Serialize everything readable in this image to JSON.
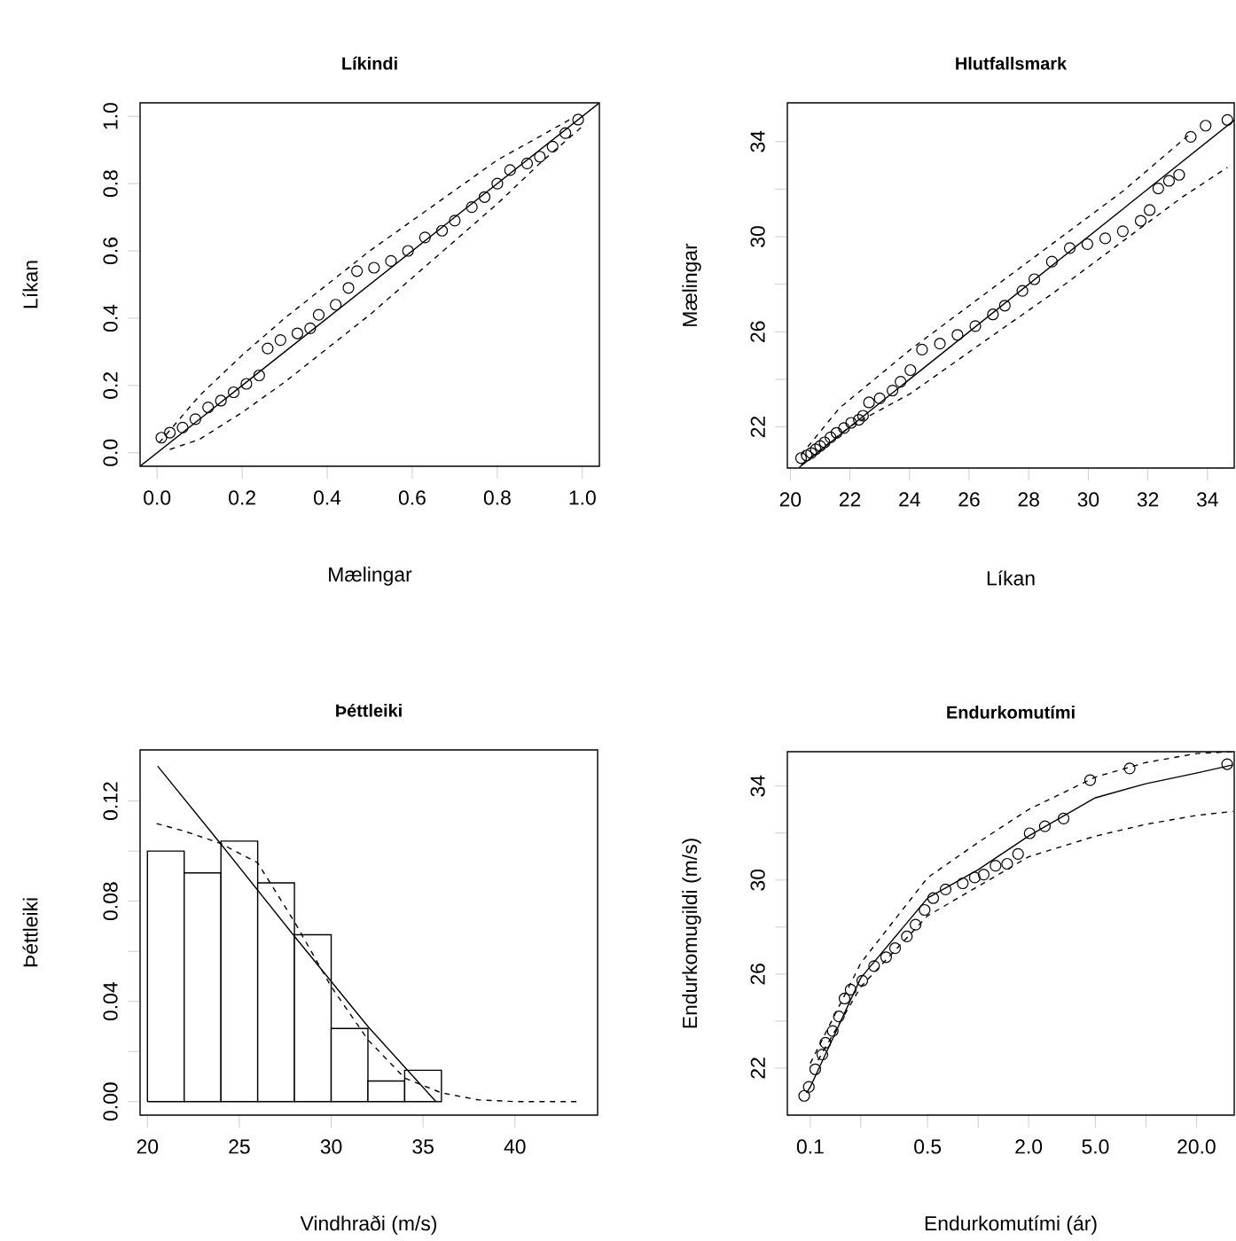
{
  "chart_data": [
    {
      "type": "scatter",
      "title": "Líkindi",
      "xlabel": "Mælingar",
      "ylabel": "Líkan",
      "xlim": [
        -0.04,
        1.04
      ],
      "ylim": [
        -0.04,
        1.04
      ],
      "xticks": [
        {
          "value": 0,
          "label": "0.0"
        },
        {
          "value": 0.2,
          "label": "0.2"
        },
        {
          "value": 0.4,
          "label": "0.4"
        },
        {
          "value": 0.6,
          "label": "0.6"
        },
        {
          "value": 0.8,
          "label": "0.8"
        },
        {
          "value": 1,
          "label": "1.0"
        }
      ],
      "yticks": [
        {
          "value": 0,
          "label": "0.0"
        },
        {
          "value": 0.2,
          "label": "0.2"
        },
        {
          "value": 0.4,
          "label": "0.4"
        },
        {
          "value": 0.6,
          "label": "0.6"
        },
        {
          "value": 0.8,
          "label": "0.8"
        },
        {
          "value": 1,
          "label": "1.0"
        }
      ],
      "series": [
        {
          "type": "scatter",
          "marker": "circle",
          "color": "#000000",
          "x": [
            0.01,
            0.03,
            0.06,
            0.09,
            0.12,
            0.15,
            0.18,
            0.21,
            0.24,
            0.26,
            0.29,
            0.33,
            0.36,
            0.38,
            0.42,
            0.45,
            0.47,
            0.51,
            0.55,
            0.59,
            0.63,
            0.67,
            0.7,
            0.74,
            0.77,
            0.8,
            0.83,
            0.87,
            0.9,
            0.93,
            0.96,
            0.99
          ],
          "values": [
            0.045,
            0.06,
            0.075,
            0.1,
            0.135,
            0.155,
            0.18,
            0.205,
            0.23,
            0.31,
            0.335,
            0.355,
            0.37,
            0.41,
            0.44,
            0.49,
            0.54,
            0.55,
            0.57,
            0.6,
            0.64,
            0.66,
            0.69,
            0.73,
            0.76,
            0.8,
            0.84,
            0.86,
            0.88,
            0.91,
            0.95,
            0.99
          ]
        },
        {
          "type": "line",
          "line_style": "solid",
          "color": "#000000",
          "x": [
            -0.04,
            1.04
          ],
          "values": [
            -0.04,
            1.04
          ]
        },
        {
          "type": "line",
          "line_style": "dashed",
          "color": "#000000",
          "x": [
            0.005,
            0.1,
            0.2,
            0.3,
            0.4,
            0.5,
            0.6,
            0.7,
            0.8,
            0.9,
            0.97
          ],
          "values": [
            0.03,
            0.17,
            0.29,
            0.4,
            0.5,
            0.6,
            0.69,
            0.78,
            0.87,
            0.94,
            0.99
          ]
        },
        {
          "type": "line",
          "line_style": "dashed",
          "color": "#000000",
          "x": [
            0.03,
            0.1,
            0.2,
            0.3,
            0.4,
            0.5,
            0.6,
            0.7,
            0.8,
            0.9,
            1
          ],
          "values": [
            0.01,
            0.04,
            0.12,
            0.21,
            0.31,
            0.41,
            0.52,
            0.63,
            0.74,
            0.86,
            0.97
          ]
        }
      ]
    },
    {
      "type": "scatter",
      "title": "Hlutfallsmark",
      "xlabel": "Líkan",
      "ylabel": "Mælingar",
      "xlim": [
        19.9,
        34.9
      ],
      "ylim": [
        20.27,
        35.63
      ],
      "xticks": [
        20,
        22,
        24,
        26,
        28,
        30,
        32,
        34
      ],
      "yticks": [
        22,
        {
          "value": 24,
          "label": null
        },
        26,
        {
          "value": 28,
          "label": null
        },
        30,
        {
          "value": 32,
          "label": null
        },
        34
      ],
      "series": [
        {
          "type": "scatter",
          "marker": "circle",
          "color": "#000000",
          "x": [
            20.36,
            20.55,
            20.7,
            20.85,
            21.0,
            21.15,
            21.35,
            21.55,
            21.8,
            22.04,
            22.3,
            22.44,
            22.64,
            23.0,
            23.43,
            23.7,
            24.03,
            24.42,
            25.02,
            25.61,
            26.21,
            26.8,
            27.2,
            27.79,
            28.19,
            28.78,
            29.38,
            29.97,
            30.57,
            31.16,
            31.76,
            32.06,
            32.35,
            32.71,
            33.05,
            33.44,
            33.94,
            34.67
          ],
          "values": [
            20.69,
            20.8,
            20.9,
            21.06,
            21.2,
            21.35,
            21.56,
            21.75,
            21.95,
            22.17,
            22.3,
            22.47,
            23.03,
            23.2,
            23.53,
            23.9,
            24.39,
            25.25,
            25.5,
            25.87,
            26.24,
            26.73,
            27.1,
            27.72,
            28.21,
            28.95,
            29.52,
            29.69,
            29.93,
            30.23,
            30.67,
            31.12,
            32.03,
            32.35,
            32.6,
            34.2,
            34.67,
            34.91
          ]
        },
        {
          "type": "line",
          "line_style": "solid",
          "color": "#000000",
          "x": [
            20.3,
            34.9
          ],
          "values": [
            20.3,
            34.9
          ]
        },
        {
          "type": "line",
          "line_style": "dashed",
          "color": "#000000",
          "x": [
            20.36,
            21.65,
            24.03,
            26.4,
            28.78,
            31.16,
            33.35
          ],
          "values": [
            20.82,
            22.79,
            25.25,
            27.47,
            29.69,
            31.91,
            34.25
          ]
        },
        {
          "type": "line",
          "line_style": "dashed",
          "color": "#000000",
          "x": [
            20.36,
            22.04,
            24.03,
            26.4,
            28.78,
            31.16,
            33.15,
            34.67
          ],
          "values": [
            20.4,
            22.05,
            23.4,
            25.5,
            27.59,
            29.81,
            31.66,
            32.91
          ]
        }
      ]
    },
    {
      "type": "histogram",
      "title": "Þéttleiki",
      "xlabel": "Vindhraði (m/s)",
      "ylabel": "Þéttleiki",
      "xlim": [
        19.6,
        44.5
      ],
      "ylim": [
        -0.0054,
        0.1404
      ],
      "xticks": [
        20,
        25,
        30,
        35,
        40
      ],
      "yticks": [
        {
          "value": 0,
          "label": "0.00"
        },
        {
          "value": 0.02,
          "label": null
        },
        {
          "value": 0.04,
          "label": "0.04"
        },
        {
          "value": 0.06,
          "label": null
        },
        {
          "value": 0.08,
          "label": "0.08"
        },
        {
          "value": 0.1,
          "label": null
        },
        {
          "value": 0.12,
          "label": "0.12"
        }
      ],
      "bins": [
        20,
        22,
        24,
        26,
        28,
        30,
        32,
        34,
        36
      ],
      "values": [
        0.1,
        0.0913,
        0.104,
        0.0873,
        0.0666,
        0.0292,
        0.0082,
        0.0125
      ],
      "color": "#ffffff",
      "series": [
        {
          "type": "line",
          "line_style": "solid",
          "color": "#000000",
          "x": [
            20.55,
            24,
            28,
            32,
            35.7
          ],
          "values": [
            0.134,
            0.1028,
            0.066,
            0.03,
            0.0
          ]
        },
        {
          "type": "line",
          "line_style": "dashed",
          "color": "#000000",
          "x": [
            20.5,
            22,
            24,
            26,
            28,
            30,
            32,
            34,
            36,
            38,
            40,
            43.5
          ],
          "values": [
            0.111,
            0.108,
            0.103,
            0.0953,
            0.0718,
            0.0459,
            0.0247,
            0.0094,
            0.0035,
            0.0007,
            0.0,
            0.0
          ]
        }
      ]
    },
    {
      "type": "scatter",
      "title": "Endurkomutími",
      "xlabel": "Endurkomutími (ár)",
      "ylabel": "Endurkomugildi (m/s)",
      "log": "x",
      "xlim": [
        0.073,
        33.6
      ],
      "ylim": [
        20.0,
        35.46
      ],
      "xticks": [
        0.1,
        {
          "value": 0.2,
          "label": null
        },
        0.5,
        {
          "value": 1,
          "label": null
        },
        {
          "value": 2,
          "label": "2.0"
        },
        {
          "value": 5,
          "label": "5.0"
        },
        {
          "value": 10,
          "label": null
        },
        {
          "value": 20,
          "label": "20.0"
        }
      ],
      "yticks": [
        22,
        {
          "value": 24,
          "label": null
        },
        26,
        {
          "value": 28,
          "label": null
        },
        30,
        {
          "value": 32,
          "label": null
        },
        34
      ],
      "series": [
        {
          "type": "scatter",
          "marker": "circle",
          "color": "#000000",
          "x": [
            0.092,
            0.098,
            0.107,
            0.118,
            0.123,
            0.136,
            0.148,
            0.16,
            0.174,
            0.204,
            0.24,
            0.283,
            0.32,
            0.376,
            0.424,
            0.48,
            0.54,
            0.64,
            0.81,
            0.955,
            1.08,
            1.27,
            1.49,
            1.73,
            2.03,
            2.5,
            3.23,
            4.65,
            8.0,
            30.5
          ],
          "values": [
            20.82,
            21.2,
            21.95,
            22.58,
            23.08,
            23.58,
            24.2,
            24.96,
            25.34,
            25.72,
            26.34,
            26.72,
            27.1,
            27.6,
            28.1,
            28.73,
            29.23,
            29.6,
            29.86,
            30.11,
            30.23,
            30.61,
            30.69,
            31.11,
            31.99,
            32.29,
            32.62,
            34.25,
            34.75,
            34.93
          ]
        },
        {
          "type": "line",
          "line_style": "solid",
          "color": "#000000",
          "x": [
            0.095,
            0.1,
            0.2,
            0.5,
            1,
            2,
            5,
            10,
            20,
            33
          ],
          "values": [
            20.95,
            21.2,
            25.84,
            29.23,
            30.44,
            31.87,
            33.5,
            34.1,
            34.55,
            34.9
          ]
        },
        {
          "type": "line",
          "line_style": "dashed",
          "color": "#000000",
          "x": [
            0.1,
            0.2,
            0.5,
            1,
            2,
            5,
            10,
            20,
            33
          ],
          "values": [
            22.2,
            26.47,
            30.1,
            31.6,
            33.0,
            34.38,
            35.0,
            35.38,
            35.46
          ]
        },
        {
          "type": "line",
          "line_style": "dashed",
          "color": "#000000",
          "x": [
            0.111,
            0.2,
            0.5,
            1,
            2,
            5,
            10,
            20,
            33
          ],
          "values": [
            22.33,
            25.46,
            28.48,
            29.73,
            30.99,
            31.87,
            32.37,
            32.75,
            32.92
          ]
        }
      ]
    }
  ]
}
